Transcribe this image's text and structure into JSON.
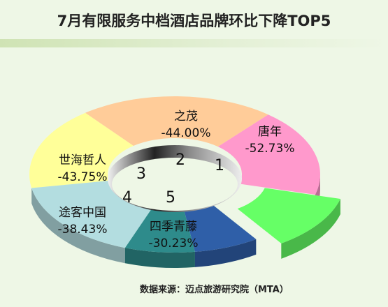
{
  "title": "7月有限服务中档酒店品牌环比下降TOP5",
  "source": "数据来源：迈点旅游研究院（MTA）",
  "chart_data": {
    "type": "pie",
    "style": "3d-donut",
    "legend": "none",
    "grid": false,
    "slices": [
      {
        "name": "唐年",
        "value": -52.73,
        "display": "-52.73%",
        "rank": "1",
        "color": "#ff99cc"
      },
      {
        "name": "之茂",
        "value": -44.0,
        "display": "-44.00%",
        "rank": "2",
        "color": "#ffcc99"
      },
      {
        "name": "世海哲人",
        "value": -43.75,
        "display": "-43.75%",
        "rank": "3",
        "color": "#ffff99"
      },
      {
        "name": "途客中国",
        "value": -38.43,
        "display": "-38.43%",
        "rank": "4",
        "color": "#b3dde0"
      },
      {
        "name": "四季青藤",
        "value": -30.23,
        "display": "-30.23%",
        "rank": "5",
        "color": "#2e8b8b"
      },
      {
        "name": "",
        "value": null,
        "display": "",
        "rank": "",
        "color": "#2f5fa8"
      },
      {
        "name": "",
        "value": null,
        "display": "",
        "rank": "",
        "color": "#66ff66"
      }
    ]
  }
}
